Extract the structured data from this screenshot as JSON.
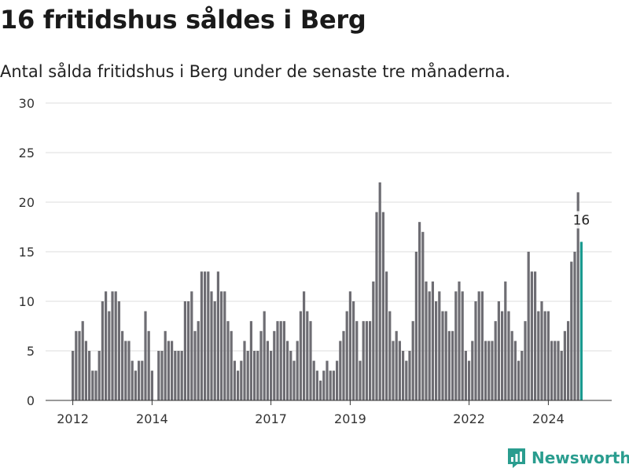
{
  "title": "16 fritidshus såldes i Berg",
  "subtitle": "Antal sålda fritidshus i Berg under de senaste tre månaderna.",
  "brand": "Newsworthy",
  "colors": {
    "bar": "#6e6d73",
    "highlight": "#1a9a8f",
    "grid": "#dddddd",
    "brand": "#2a9d8f"
  },
  "chart_data": {
    "type": "bar",
    "title": "16 fritidshus såldes i Berg",
    "subtitle": "Antal sålda fritidshus i Berg under de senaste tre månaderna.",
    "ylim": [
      0,
      30
    ],
    "yticks": [
      0,
      5,
      10,
      15,
      20,
      25,
      30
    ],
    "xticks": [
      "2012",
      "2014",
      "2017",
      "2019",
      "2022",
      "2024"
    ],
    "grid": true,
    "start_month": "2012-01",
    "interval": "monthly",
    "values": [
      5,
      7,
      7,
      8,
      6,
      5,
      3,
      3,
      5,
      10,
      11,
      9,
      11,
      11,
      10,
      7,
      6,
      6,
      4,
      3,
      4,
      4,
      9,
      7,
      3,
      0,
      5,
      5,
      7,
      6,
      6,
      5,
      5,
      5,
      10,
      10,
      11,
      7,
      8,
      13,
      13,
      13,
      11,
      10,
      13,
      11,
      11,
      8,
      7,
      4,
      3,
      4,
      6,
      5,
      8,
      5,
      5,
      7,
      9,
      6,
      5,
      7,
      8,
      8,
      8,
      6,
      5,
      4,
      6,
      9,
      11,
      9,
      8,
      4,
      3,
      2,
      3,
      4,
      3,
      3,
      4,
      6,
      7,
      9,
      11,
      10,
      8,
      4,
      8,
      8,
      8,
      12,
      19,
      22,
      19,
      13,
      9,
      6,
      7,
      6,
      5,
      4,
      5,
      8,
      15,
      18,
      17,
      12,
      11,
      12,
      10,
      11,
      9,
      9,
      7,
      7,
      11,
      12,
      11,
      5,
      4,
      6,
      10,
      11,
      11,
      6,
      6,
      6,
      8,
      10,
      9,
      12,
      9,
      7,
      6,
      4,
      5,
      8,
      15,
      13,
      13,
      9,
      10,
      9,
      9,
      6,
      6,
      6,
      5,
      7,
      8,
      14,
      15,
      21,
      16
    ],
    "highlight_last": true,
    "annotations": [
      {
        "label": "16"
      }
    ]
  }
}
